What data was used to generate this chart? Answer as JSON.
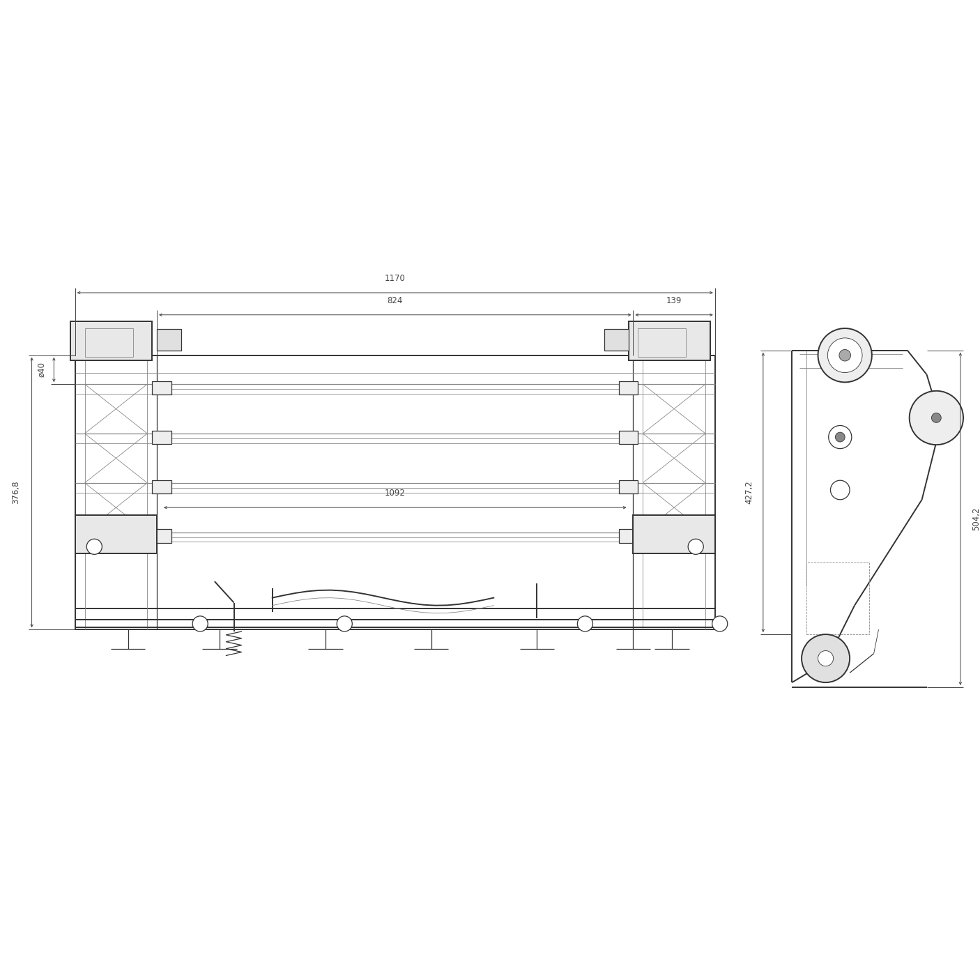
{
  "bg_color": "#ffffff",
  "lc": "#888888",
  "dc": "#333333",
  "dim_c": "#444444",
  "lw_main": 1.4,
  "lw_med": 0.9,
  "lw_thin": 0.6,
  "lw_dim": 0.7,
  "fs_dim": 8.5,
  "figsize": [
    14.06,
    14.06
  ],
  "dpi": 100,
  "labels": {
    "d1170": "1170",
    "d824": "824",
    "d139": "139",
    "d1092": "1092",
    "d3768": "376,8",
    "d40": "ø40",
    "d4272": "427,2",
    "d5042": "504,2"
  },
  "fv": {
    "xl": 0.075,
    "xr": 0.74,
    "yt": 0.64,
    "yb": 0.355,
    "lc_xl": 0.075,
    "lc_xr": 0.16,
    "rc_xl": 0.655,
    "rc_xr": 0.74,
    "inner_xl": 0.16,
    "inner_xr": 0.655
  },
  "sv": {
    "xl": 0.82,
    "xr": 0.96,
    "yt": 0.645,
    "yb": 0.3
  }
}
